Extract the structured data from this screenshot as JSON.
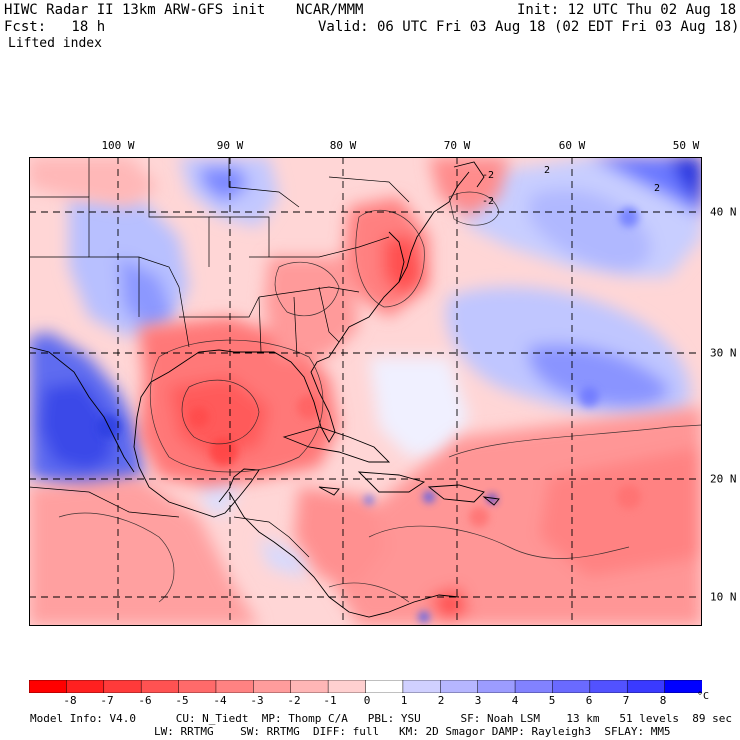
{
  "header": {
    "title": "HIWC Radar II 13km ARW-GFS init",
    "org": "NCAR/MMM",
    "init": "Init: 12 UTC Thu 02 Aug 18",
    "fcst": "Fcst:   18 h",
    "valid": "Valid: 06 UTC Fri 03 Aug 18 (02 EDT Fri 03 Aug 18)",
    "field": "Lifted index"
  },
  "map": {
    "lon_labels": [
      "100 W",
      "90 W",
      "80 W",
      "70 W",
      "60 W",
      "50 W"
    ],
    "lat_labels": [
      "40 N",
      "30 N",
      "20 N",
      "10 N"
    ],
    "contour_labels": [
      "-2",
      "-2",
      "2",
      "2"
    ]
  },
  "colorbar": {
    "ticks": [
      "-8",
      "-7",
      "-6",
      "-5",
      "-4",
      "-3",
      "-2",
      "-1",
      "0",
      "1",
      "2",
      "3",
      "4",
      "5",
      "6",
      "7",
      "8"
    ],
    "unit": "°C",
    "colors": [
      "#ff0000",
      "#ff2020",
      "#ff3a3a",
      "#ff5252",
      "#ff6a6a",
      "#ff8282",
      "#ff9c9c",
      "#ffb6b6",
      "#ffd0d0",
      "#ffffff",
      "#d0d0ff",
      "#b6b6ff",
      "#9c9cff",
      "#8282ff",
      "#6a6aff",
      "#5252ff",
      "#3a3aff",
      "#0000ff"
    ]
  },
  "footer": {
    "line1": "Model Info: V4.0      CU: N_Tiedt  MP: Thomp C/A   PBL: YSU      SF: Noah LSM    13 km   51 levels  89 sec",
    "line2": "LW: RRTMG    SW: RRTMG  DIFF: full   KM: 2D Smagor DAMP: Rayleigh3  SFLAY: MM5"
  }
}
